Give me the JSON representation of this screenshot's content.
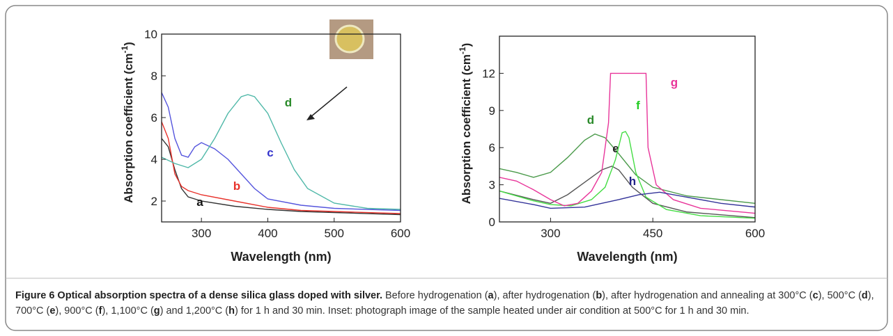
{
  "chart_data": [
    {
      "type": "line",
      "xlabel": "Wavelength (nm)",
      "ylabel": "Absorption coefficient (cm",
      "ylabel_sup": "-1",
      "ylabel_end": ")",
      "xlim": [
        240,
        600
      ],
      "ylim": [
        1,
        10
      ],
      "xticks": [
        300,
        400,
        500,
        600
      ],
      "yticks": [
        2,
        4,
        6,
        8,
        10
      ],
      "series": [
        {
          "name": "a",
          "color": "#333333",
          "x": [
            240,
            250,
            260,
            270,
            280,
            300,
            350,
            400,
            450,
            500,
            600
          ],
          "values": [
            5.0,
            4.6,
            3.5,
            2.6,
            2.2,
            2.0,
            1.75,
            1.6,
            1.5,
            1.45,
            1.35
          ]
        },
        {
          "name": "b",
          "color": "#e8322b",
          "x": [
            240,
            250,
            260,
            270,
            280,
            300,
            350,
            400,
            450,
            500,
            600
          ],
          "values": [
            5.8,
            5.0,
            3.3,
            2.7,
            2.5,
            2.3,
            2.0,
            1.7,
            1.55,
            1.5,
            1.4
          ]
        },
        {
          "name": "c",
          "color": "#5555dd",
          "x": [
            240,
            250,
            260,
            270,
            280,
            290,
            300,
            320,
            340,
            360,
            380,
            400,
            450,
            500,
            600
          ],
          "values": [
            7.2,
            6.5,
            5.0,
            4.2,
            4.1,
            4.6,
            4.8,
            4.5,
            4.0,
            3.3,
            2.6,
            2.1,
            1.8,
            1.65,
            1.55
          ]
        },
        {
          "name": "d",
          "color": "#4fb8a8",
          "x": [
            240,
            260,
            280,
            300,
            320,
            340,
            360,
            370,
            380,
            400,
            420,
            440,
            460,
            500,
            550,
            600
          ],
          "values": [
            4.1,
            3.8,
            3.6,
            4.0,
            5.0,
            6.2,
            7.0,
            7.1,
            7.0,
            6.2,
            4.8,
            3.5,
            2.6,
            1.9,
            1.65,
            1.6
          ]
        }
      ]
    },
    {
      "type": "line",
      "xlabel": "Wavelength (nm)",
      "ylabel": "Absorption coefficient (cm",
      "ylabel_sup": "-1",
      "ylabel_end": ")",
      "xlim": [
        225,
        600
      ],
      "ylim": [
        0,
        15
      ],
      "xticks": [
        300,
        450,
        600
      ],
      "yticks": [
        0,
        3,
        6,
        9,
        12
      ],
      "series": [
        {
          "name": "d",
          "color": "#4a9a4a",
          "x": [
            225,
            250,
            275,
            300,
            325,
            350,
            365,
            380,
            400,
            425,
            450,
            500,
            600
          ],
          "values": [
            4.3,
            4.0,
            3.6,
            4.0,
            5.2,
            6.6,
            7.1,
            6.8,
            5.5,
            3.8,
            2.8,
            2.1,
            1.5
          ]
        },
        {
          "name": "e",
          "color": "#555555",
          "x": [
            225,
            275,
            300,
            325,
            350,
            375,
            390,
            400,
            420,
            450,
            500,
            600
          ],
          "values": [
            2.5,
            1.8,
            1.5,
            2.2,
            3.2,
            4.2,
            4.5,
            4.2,
            2.8,
            1.5,
            0.8,
            0.35
          ]
        },
        {
          "name": "f",
          "color": "#44dd44",
          "x": [
            225,
            275,
            300,
            330,
            360,
            380,
            395,
            405,
            410,
            415,
            425,
            440,
            470,
            520,
            600
          ],
          "values": [
            2.5,
            1.7,
            1.4,
            1.3,
            1.8,
            2.8,
            5.0,
            7.2,
            7.3,
            6.8,
            4.0,
            2.0,
            1.0,
            0.5,
            0.3
          ]
        },
        {
          "name": "g",
          "color": "#e8359a",
          "x": [
            225,
            250,
            275,
            300,
            320,
            340,
            360,
            375,
            385,
            388,
            440,
            443,
            455,
            480,
            520,
            600
          ],
          "values": [
            3.6,
            3.3,
            2.6,
            1.8,
            1.3,
            1.5,
            2.5,
            4.0,
            8.0,
            12,
            12,
            6,
            3.0,
            1.8,
            1.1,
            0.7
          ]
        },
        {
          "name": "h",
          "color": "#333399",
          "x": [
            225,
            275,
            300,
            350,
            400,
            430,
            460,
            500,
            550,
            600
          ],
          "values": [
            1.9,
            1.4,
            1.1,
            1.2,
            1.8,
            2.2,
            2.4,
            2.0,
            1.5,
            1.2
          ]
        }
      ]
    }
  ],
  "caption": {
    "title": "Figure 6 Optical absorption spectra of a dense silica glass doped with silver.",
    "body": [
      "Before hydrogenation (",
      "a",
      "), after hydrogenation (",
      "b",
      "), after hydrogenation and annealing at 300°C (",
      "c",
      "), 500°C (",
      "d",
      "), 700°C (",
      "e",
      "), 900°C (",
      "f",
      "), 1,100°C (",
      "g",
      ") and 1,200°C (",
      "h",
      ") for 1 h and 30 min. Inset: photograph image of the sample heated under air condition at 500°C for 1 h and 30 min."
    ]
  }
}
